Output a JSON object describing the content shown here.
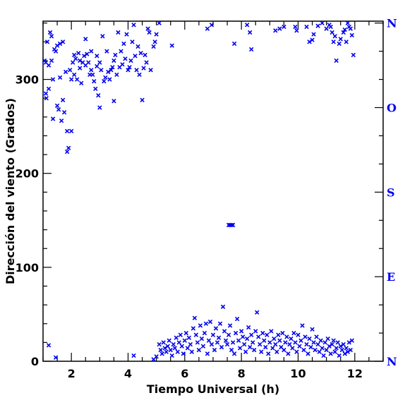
{
  "chart_data": {
    "type": "scatter",
    "xlabel": "Tiempo Universal (h)",
    "ylabel": "Dirección del viento (Grados)",
    "xlim": [
      1,
      13
    ],
    "ylim": [
      0,
      362
    ],
    "x_ticks": [
      2,
      4,
      6,
      8,
      10,
      12
    ],
    "x_tick_labels": [
      "2",
      "4",
      "6",
      "8",
      "10",
      "12"
    ],
    "y_ticks": [
      0,
      100,
      200,
      300
    ],
    "y_tick_labels": [
      "0",
      "100",
      "200",
      "300"
    ],
    "right_axis": {
      "ticks": [
        0,
        90,
        180,
        270,
        360
      ],
      "labels": [
        "N",
        "E",
        "S",
        "O",
        "N"
      ]
    },
    "grid": false,
    "marker": "x",
    "marker_color": "#0000ee",
    "series": [
      {
        "points": [
          [
            1.05,
            320
          ],
          [
            1.1,
            318
          ],
          [
            1.1,
            285
          ],
          [
            1.12,
            280
          ],
          [
            1.15,
            340
          ],
          [
            1.2,
            290
          ],
          [
            1.2,
            315
          ],
          [
            1.25,
            350
          ],
          [
            1.3,
            346
          ],
          [
            1.3,
            320
          ],
          [
            1.35,
            300
          ],
          [
            1.35,
            258
          ],
          [
            1.4,
            332
          ],
          [
            1.45,
            330
          ],
          [
            1.5,
            336
          ],
          [
            1.5,
            272
          ],
          [
            1.55,
            268
          ],
          [
            1.6,
            302
          ],
          [
            1.6,
            338
          ],
          [
            1.65,
            256
          ],
          [
            1.7,
            340
          ],
          [
            1.7,
            278
          ],
          [
            1.75,
            265
          ],
          [
            1.8,
            308
          ],
          [
            1.85,
            245
          ],
          [
            1.85,
            223
          ],
          [
            1.9,
            227
          ],
          [
            1.95,
            310
          ],
          [
            2.0,
            245
          ],
          [
            2.0,
            300
          ],
          [
            2.05,
            318
          ],
          [
            2.1,
            305
          ],
          [
            2.1,
            326
          ],
          [
            2.15,
            322
          ],
          [
            2.2,
            300
          ],
          [
            2.25,
            328
          ],
          [
            2.3,
            312
          ],
          [
            2.3,
            320
          ],
          [
            2.35,
            296
          ],
          [
            2.4,
            318
          ],
          [
            2.45,
            325
          ],
          [
            2.5,
            315
          ],
          [
            2.5,
            343
          ],
          [
            2.55,
            327
          ],
          [
            2.6,
            318
          ],
          [
            2.65,
            305
          ],
          [
            2.7,
            330
          ],
          [
            2.7,
            310
          ],
          [
            2.75,
            305
          ],
          [
            2.8,
            298
          ],
          [
            2.85,
            290
          ],
          [
            2.9,
            314
          ],
          [
            2.9,
            325
          ],
          [
            2.95,
            283
          ],
          [
            3.0,
            270
          ],
          [
            3.0,
            318
          ],
          [
            3.05,
            310
          ],
          [
            3.1,
            346
          ],
          [
            3.15,
            298
          ],
          [
            3.2,
            302
          ],
          [
            3.25,
            330
          ],
          [
            3.3,
            308
          ],
          [
            3.35,
            300
          ],
          [
            3.4,
            310
          ],
          [
            3.45,
            313
          ],
          [
            3.5,
            320
          ],
          [
            3.5,
            277
          ],
          [
            3.55,
            326
          ],
          [
            3.6,
            305
          ],
          [
            3.65,
            350
          ],
          [
            3.7,
            313
          ],
          [
            3.75,
            330
          ],
          [
            3.8,
            316
          ],
          [
            3.85,
            338
          ],
          [
            3.9,
            322
          ],
          [
            3.95,
            348
          ],
          [
            4.0,
            310
          ],
          [
            4.05,
            313
          ],
          [
            4.1,
            320
          ],
          [
            4.15,
            340
          ],
          [
            4.2,
            358
          ],
          [
            4.25,
            325
          ],
          [
            4.3,
            310
          ],
          [
            4.35,
            335
          ],
          [
            4.4,
            305
          ],
          [
            4.45,
            328
          ],
          [
            4.5,
            278
          ],
          [
            4.55,
            312
          ],
          [
            4.6,
            326
          ],
          [
            4.65,
            318
          ],
          [
            4.7,
            354
          ],
          [
            4.75,
            350
          ],
          [
            4.8,
            310
          ],
          [
            4.9,
            335
          ],
          [
            4.95,
            340
          ],
          [
            5.0,
            348
          ],
          [
            5.1,
            360
          ],
          [
            5.55,
            336
          ],
          [
            6.8,
            354
          ],
          [
            6.95,
            358
          ],
          [
            7.75,
            338
          ],
          [
            8.2,
            358
          ],
          [
            8.3,
            350
          ],
          [
            8.35,
            332
          ],
          [
            9.2,
            352
          ],
          [
            9.35,
            354
          ],
          [
            9.5,
            356
          ],
          [
            9.9,
            356
          ],
          [
            9.95,
            352
          ],
          [
            10.3,
            356
          ],
          [
            10.4,
            340
          ],
          [
            10.5,
            342
          ],
          [
            10.55,
            348
          ],
          [
            10.7,
            357
          ],
          [
            10.85,
            360
          ],
          [
            11.0,
            354
          ],
          [
            11.1,
            358
          ],
          [
            11.15,
            356
          ],
          [
            11.2,
            350
          ],
          [
            11.25,
            340
          ],
          [
            11.3,
            346
          ],
          [
            11.35,
            320
          ],
          [
            11.45,
            338
          ],
          [
            11.5,
            343
          ],
          [
            11.6,
            350
          ],
          [
            11.65,
            353
          ],
          [
            11.7,
            340
          ],
          [
            11.75,
            360
          ],
          [
            11.8,
            356
          ],
          [
            11.85,
            354
          ],
          [
            11.9,
            347
          ],
          [
            11.95,
            326
          ],
          [
            7.55,
            145
          ],
          [
            7.6,
            145
          ],
          [
            7.65,
            145
          ],
          [
            7.7,
            145
          ],
          [
            1.2,
            17
          ],
          [
            1.45,
            4
          ],
          [
            4.2,
            6
          ],
          [
            4.9,
            2
          ],
          [
            5.0,
            5
          ],
          [
            5.1,
            18
          ],
          [
            5.15,
            12
          ],
          [
            5.2,
            8
          ],
          [
            5.25,
            20
          ],
          [
            5.3,
            14
          ],
          [
            5.35,
            10
          ],
          [
            5.4,
            16
          ],
          [
            5.45,
            22
          ],
          [
            5.5,
            12
          ],
          [
            5.55,
            6
          ],
          [
            5.6,
            18
          ],
          [
            5.65,
            14
          ],
          [
            5.7,
            25
          ],
          [
            5.75,
            10
          ],
          [
            5.8,
            20
          ],
          [
            5.85,
            28
          ],
          [
            5.9,
            16
          ],
          [
            5.95,
            8
          ],
          [
            6.0,
            22
          ],
          [
            6.05,
            30
          ],
          [
            6.1,
            14
          ],
          [
            6.15,
            25
          ],
          [
            6.2,
            18
          ],
          [
            6.25,
            10
          ],
          [
            6.3,
            35
          ],
          [
            6.35,
            46
          ],
          [
            6.4,
            28
          ],
          [
            6.45,
            20
          ],
          [
            6.5,
            12
          ],
          [
            6.55,
            38
          ],
          [
            6.6,
            24
          ],
          [
            6.65,
            16
          ],
          [
            6.7,
            30
          ],
          [
            6.75,
            40
          ],
          [
            6.8,
            8
          ],
          [
            6.85,
            22
          ],
          [
            6.9,
            42
          ],
          [
            6.95,
            18
          ],
          [
            7.0,
            28
          ],
          [
            7.05,
            12
          ],
          [
            7.1,
            35
          ],
          [
            7.15,
            20
          ],
          [
            7.2,
            25
          ],
          [
            7.25,
            40
          ],
          [
            7.3,
            15
          ],
          [
            7.35,
            58
          ],
          [
            7.4,
            32
          ],
          [
            7.45,
            22
          ],
          [
            7.5,
            18
          ],
          [
            7.55,
            28
          ],
          [
            7.6,
            38
          ],
          [
            7.65,
            12
          ],
          [
            7.7,
            20
          ],
          [
            7.75,
            8
          ],
          [
            7.8,
            30
          ],
          [
            7.85,
            45
          ],
          [
            7.9,
            22
          ],
          [
            7.95,
            14
          ],
          [
            8.0,
            32
          ],
          [
            8.05,
            26
          ],
          [
            8.1,
            18
          ],
          [
            8.15,
            10
          ],
          [
            8.2,
            24
          ],
          [
            8.25,
            36
          ],
          [
            8.3,
            15
          ],
          [
            8.35,
            28
          ],
          [
            8.4,
            20
          ],
          [
            8.45,
            12
          ],
          [
            8.5,
            32
          ],
          [
            8.55,
            52
          ],
          [
            8.6,
            26
          ],
          [
            8.65,
            18
          ],
          [
            8.7,
            10
          ],
          [
            8.75,
            30
          ],
          [
            8.8,
            22
          ],
          [
            8.85,
            15
          ],
          [
            8.9,
            28
          ],
          [
            8.95,
            8
          ],
          [
            9.0,
            20
          ],
          [
            9.05,
            32
          ],
          [
            9.1,
            14
          ],
          [
            9.15,
            24
          ],
          [
            9.2,
            18
          ],
          [
            9.25,
            10
          ],
          [
            9.3,
            28
          ],
          [
            9.35,
            22
          ],
          [
            9.4,
            15
          ],
          [
            9.45,
            30
          ],
          [
            9.5,
            12
          ],
          [
            9.55,
            20
          ],
          [
            9.6,
            26
          ],
          [
            9.65,
            8
          ],
          [
            9.7,
            18
          ],
          [
            9.75,
            24
          ],
          [
            9.8,
            14
          ],
          [
            9.85,
            30
          ],
          [
            9.9,
            20
          ],
          [
            9.95,
            10
          ],
          [
            10.0,
            28
          ],
          [
            10.05,
            16
          ],
          [
            10.1,
            22
          ],
          [
            10.15,
            38
          ],
          [
            10.2,
            12
          ],
          [
            10.25,
            26
          ],
          [
            10.3,
            18
          ],
          [
            10.35,
            8
          ],
          [
            10.4,
            24
          ],
          [
            10.45,
            15
          ],
          [
            10.5,
            34
          ],
          [
            10.55,
            20
          ],
          [
            10.6,
            12
          ],
          [
            10.65,
            26
          ],
          [
            10.7,
            18
          ],
          [
            10.75,
            10
          ],
          [
            10.8,
            22
          ],
          [
            10.85,
            14
          ],
          [
            10.9,
            6
          ],
          [
            10.95,
            20
          ],
          [
            11.0,
            12
          ],
          [
            11.05,
            24
          ],
          [
            11.1,
            16
          ],
          [
            11.15,
            8
          ],
          [
            11.2,
            18
          ],
          [
            11.25,
            22
          ],
          [
            11.3,
            10
          ],
          [
            11.35,
            14
          ],
          [
            11.4,
            20
          ],
          [
            11.45,
            6
          ],
          [
            11.5,
            16
          ],
          [
            11.55,
            12
          ],
          [
            11.6,
            18
          ],
          [
            11.65,
            8
          ],
          [
            11.7,
            14
          ],
          [
            11.75,
            10
          ],
          [
            11.8,
            20
          ],
          [
            11.85,
            12
          ],
          [
            11.9,
            22
          ]
        ]
      }
    ]
  }
}
